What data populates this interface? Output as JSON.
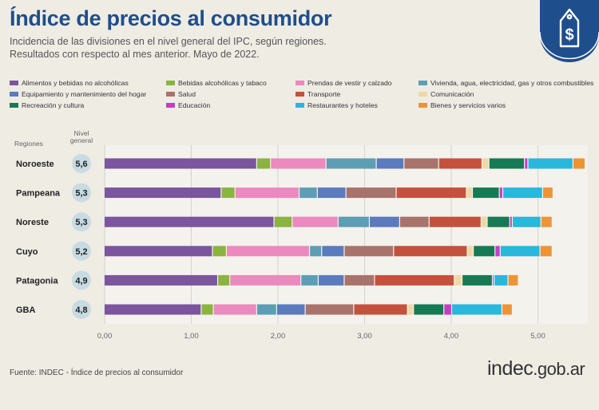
{
  "header": {
    "title": "Índice de precios al consumidor",
    "subtitle_line1": "Incidencia de las divisiones en el nivel general del IPC, según regiones.",
    "subtitle_line2": "Resultados con respecto al mes anterior. Mayo de 2022."
  },
  "badge": {
    "icon": "dollar-tag-icon",
    "color": "#1f4e8c"
  },
  "columns": {
    "regions": "Regiones",
    "level_line1": "Nivel",
    "level_line2": "general"
  },
  "chart_data": {
    "type": "bar",
    "orientation": "horizontal",
    "stacked": true,
    "categories": [
      "Noroeste",
      "Pampeana",
      "Noreste",
      "Cuyo",
      "Patagonia",
      "GBA"
    ],
    "nivel_general": [
      "5,6",
      "5,3",
      "5,3",
      "5,2",
      "4,9",
      "4,8"
    ],
    "xlim": [
      0,
      5.5
    ],
    "xticks": [
      0,
      1,
      2,
      3,
      4,
      5
    ],
    "xtick_labels": [
      "0,00",
      "1,00",
      "2,00",
      "3,00",
      "4,00",
      "5,00"
    ],
    "grid": true,
    "legend_position": "top",
    "series": [
      {
        "name": "Alimentos y bebidas no alcohólicas",
        "color": "#7b559e",
        "values": [
          1.76,
          1.35,
          1.96,
          1.25,
          1.31,
          1.12
        ]
      },
      {
        "name": "Bebidas alcohólicas y tabaco",
        "color": "#8ab33f",
        "values": [
          0.16,
          0.16,
          0.21,
          0.16,
          0.14,
          0.14
        ]
      },
      {
        "name": "Prendas de vestir y calzado",
        "color": "#ec89be",
        "values": [
          0.64,
          0.74,
          0.53,
          0.96,
          0.82,
          0.5
        ]
      },
      {
        "name": "Vivienda, agua, electricidad, gas y otros combustibles",
        "color": "#5d9eb5",
        "values": [
          0.58,
          0.21,
          0.36,
          0.14,
          0.2,
          0.23
        ]
      },
      {
        "name": "Equipamiento y mantenimiento del hogar",
        "color": "#5c7bbf",
        "values": [
          0.32,
          0.33,
          0.35,
          0.26,
          0.3,
          0.33
        ]
      },
      {
        "name": "Salud",
        "color": "#a8736b",
        "values": [
          0.4,
          0.58,
          0.34,
          0.57,
          0.35,
          0.56
        ]
      },
      {
        "name": "Transporte",
        "color": "#c4513e",
        "values": [
          0.5,
          0.81,
          0.6,
          0.85,
          0.92,
          0.62
        ]
      },
      {
        "name": "Comunicación",
        "color": "#eed9a6",
        "values": [
          0.08,
          0.07,
          0.07,
          0.07,
          0.09,
          0.07
        ]
      },
      {
        "name": "Recreación y cultura",
        "color": "#167a54",
        "values": [
          0.41,
          0.31,
          0.26,
          0.25,
          0.35,
          0.35
        ]
      },
      {
        "name": "Educación",
        "color": "#c23fc4",
        "values": [
          0.04,
          0.04,
          0.03,
          0.06,
          0.02,
          0.09
        ]
      },
      {
        "name": "Restaurantes y hoteles",
        "color": "#29b7dc",
        "values": [
          0.52,
          0.46,
          0.33,
          0.46,
          0.16,
          0.58
        ]
      },
      {
        "name": "Bienes y servicios varios",
        "color": "#ee9435",
        "values": [
          0.14,
          0.12,
          0.13,
          0.14,
          0.12,
          0.12
        ]
      }
    ]
  },
  "footer": {
    "source": "Fuente: INDEC - Índice de precios al consumidor",
    "logo_main": "indec",
    "logo_tld": ".gob.ar"
  }
}
